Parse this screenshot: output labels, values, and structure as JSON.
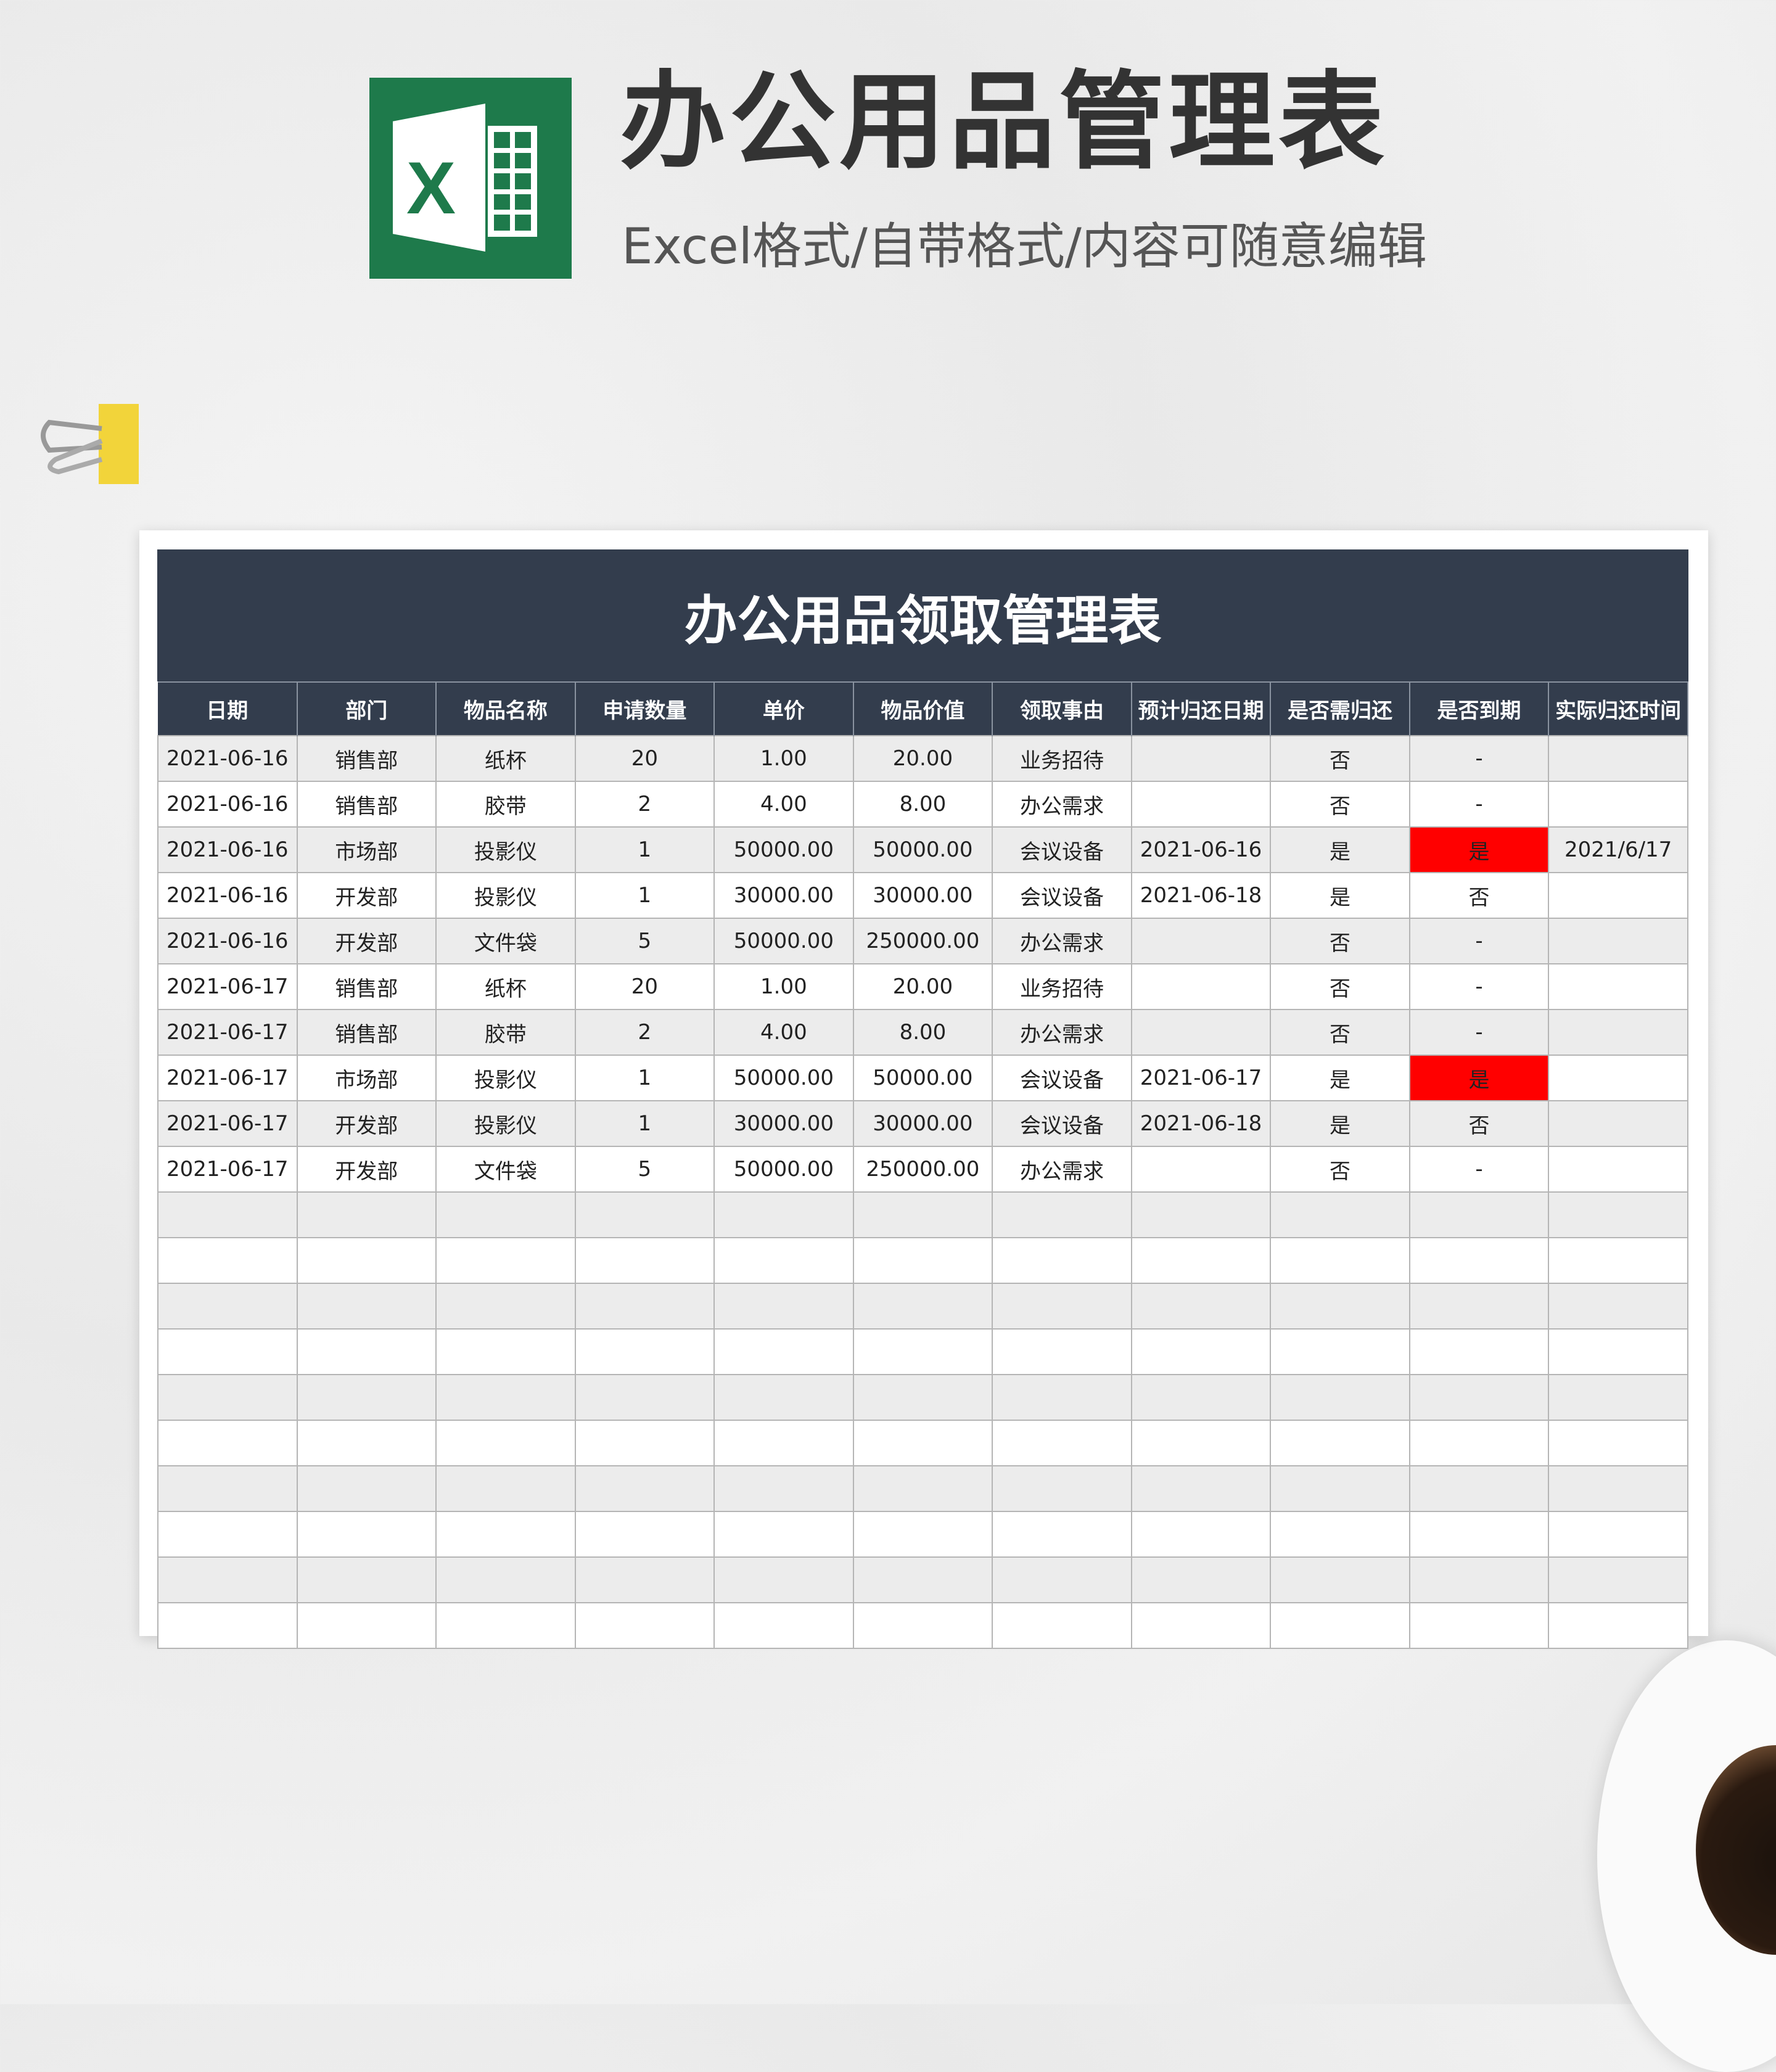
{
  "header": {
    "title": "办公用品管理表",
    "subtitle": "Excel格式/自带格式/内容可随意编辑",
    "logo_text": "X"
  },
  "sheet": {
    "title": "办公用品领取管理表",
    "columns": [
      "日期",
      "部门",
      "物品名称",
      "申请数量",
      "单价",
      "物品价值",
      "领取事由",
      "预计归还日期",
      "是否需归还",
      "是否到期",
      "实际归还时间"
    ],
    "rows": [
      [
        "2021-06-16",
        "销售部",
        "纸杯",
        "20",
        "1.00",
        "20.00",
        "业务招待",
        "",
        "否",
        "-",
        ""
      ],
      [
        "2021-06-16",
        "销售部",
        "胶带",
        "2",
        "4.00",
        "8.00",
        "办公需求",
        "",
        "否",
        "-",
        ""
      ],
      [
        "2021-06-16",
        "市场部",
        "投影仪",
        "1",
        "50000.00",
        "50000.00",
        "会议设备",
        "2021-06-16",
        "是",
        "是",
        "2021/6/17"
      ],
      [
        "2021-06-16",
        "开发部",
        "投影仪",
        "1",
        "30000.00",
        "30000.00",
        "会议设备",
        "2021-06-18",
        "是",
        "否",
        ""
      ],
      [
        "2021-06-16",
        "开发部",
        "文件袋",
        "5",
        "50000.00",
        "250000.00",
        "办公需求",
        "",
        "否",
        "-",
        ""
      ],
      [
        "2021-06-17",
        "销售部",
        "纸杯",
        "20",
        "1.00",
        "20.00",
        "业务招待",
        "",
        "否",
        "-",
        ""
      ],
      [
        "2021-06-17",
        "销售部",
        "胶带",
        "2",
        "4.00",
        "8.00",
        "办公需求",
        "",
        "否",
        "-",
        ""
      ],
      [
        "2021-06-17",
        "市场部",
        "投影仪",
        "1",
        "50000.00",
        "50000.00",
        "会议设备",
        "2021-06-17",
        "是",
        "是",
        ""
      ],
      [
        "2021-06-17",
        "开发部",
        "投影仪",
        "1",
        "30000.00",
        "30000.00",
        "会议设备",
        "2021-06-18",
        "是",
        "否",
        ""
      ],
      [
        "2021-06-17",
        "开发部",
        "文件袋",
        "5",
        "50000.00",
        "250000.00",
        "办公需求",
        "",
        "否",
        "-",
        ""
      ]
    ],
    "blank_rows": 10,
    "expired_highlight_color": "#ff0000",
    "header_color": "#333d4d"
  }
}
